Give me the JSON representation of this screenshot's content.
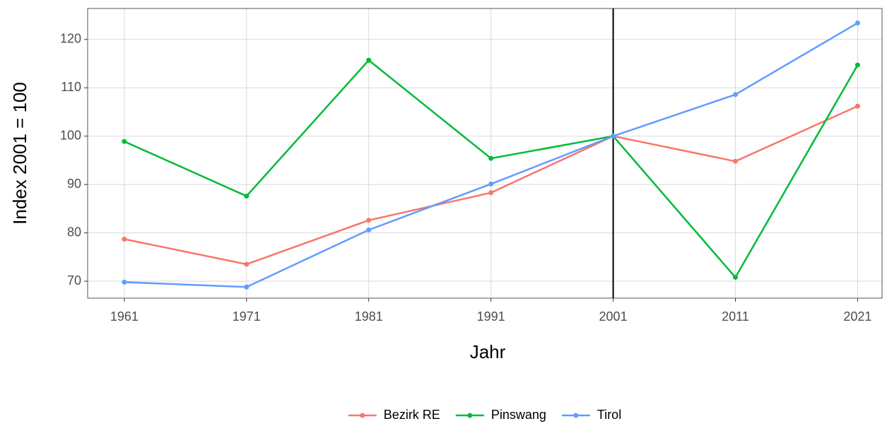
{
  "chart_data": {
    "type": "line",
    "x": [
      1961,
      1971,
      1981,
      1991,
      2001,
      2011,
      2021
    ],
    "series": [
      {
        "name": "Bezirk RE",
        "color": "#F8766D",
        "values": [
          78.7,
          73.5,
          82.6,
          88.3,
          100,
          94.8,
          106.2
        ]
      },
      {
        "name": "Pinswang",
        "color": "#00BA38",
        "values": [
          98.9,
          87.6,
          115.7,
          95.4,
          100,
          70.8,
          114.7
        ]
      },
      {
        "name": "Tirol",
        "color": "#619CFF",
        "values": [
          69.8,
          68.8,
          80.6,
          90.1,
          100,
          108.6,
          123.4
        ]
      }
    ],
    "xlabel": "Jahr",
    "ylabel": "Index 2001 = 100",
    "xlim": [
      1958,
      2023
    ],
    "xticks": [
      1961,
      1971,
      1981,
      1991,
      2001,
      2011,
      2021
    ],
    "ylim": [
      66.5,
      126.4
    ],
    "yticks": [
      70,
      80,
      90,
      100,
      110,
      120
    ],
    "vline": 2001,
    "grid": true,
    "legend": "bottom"
  }
}
